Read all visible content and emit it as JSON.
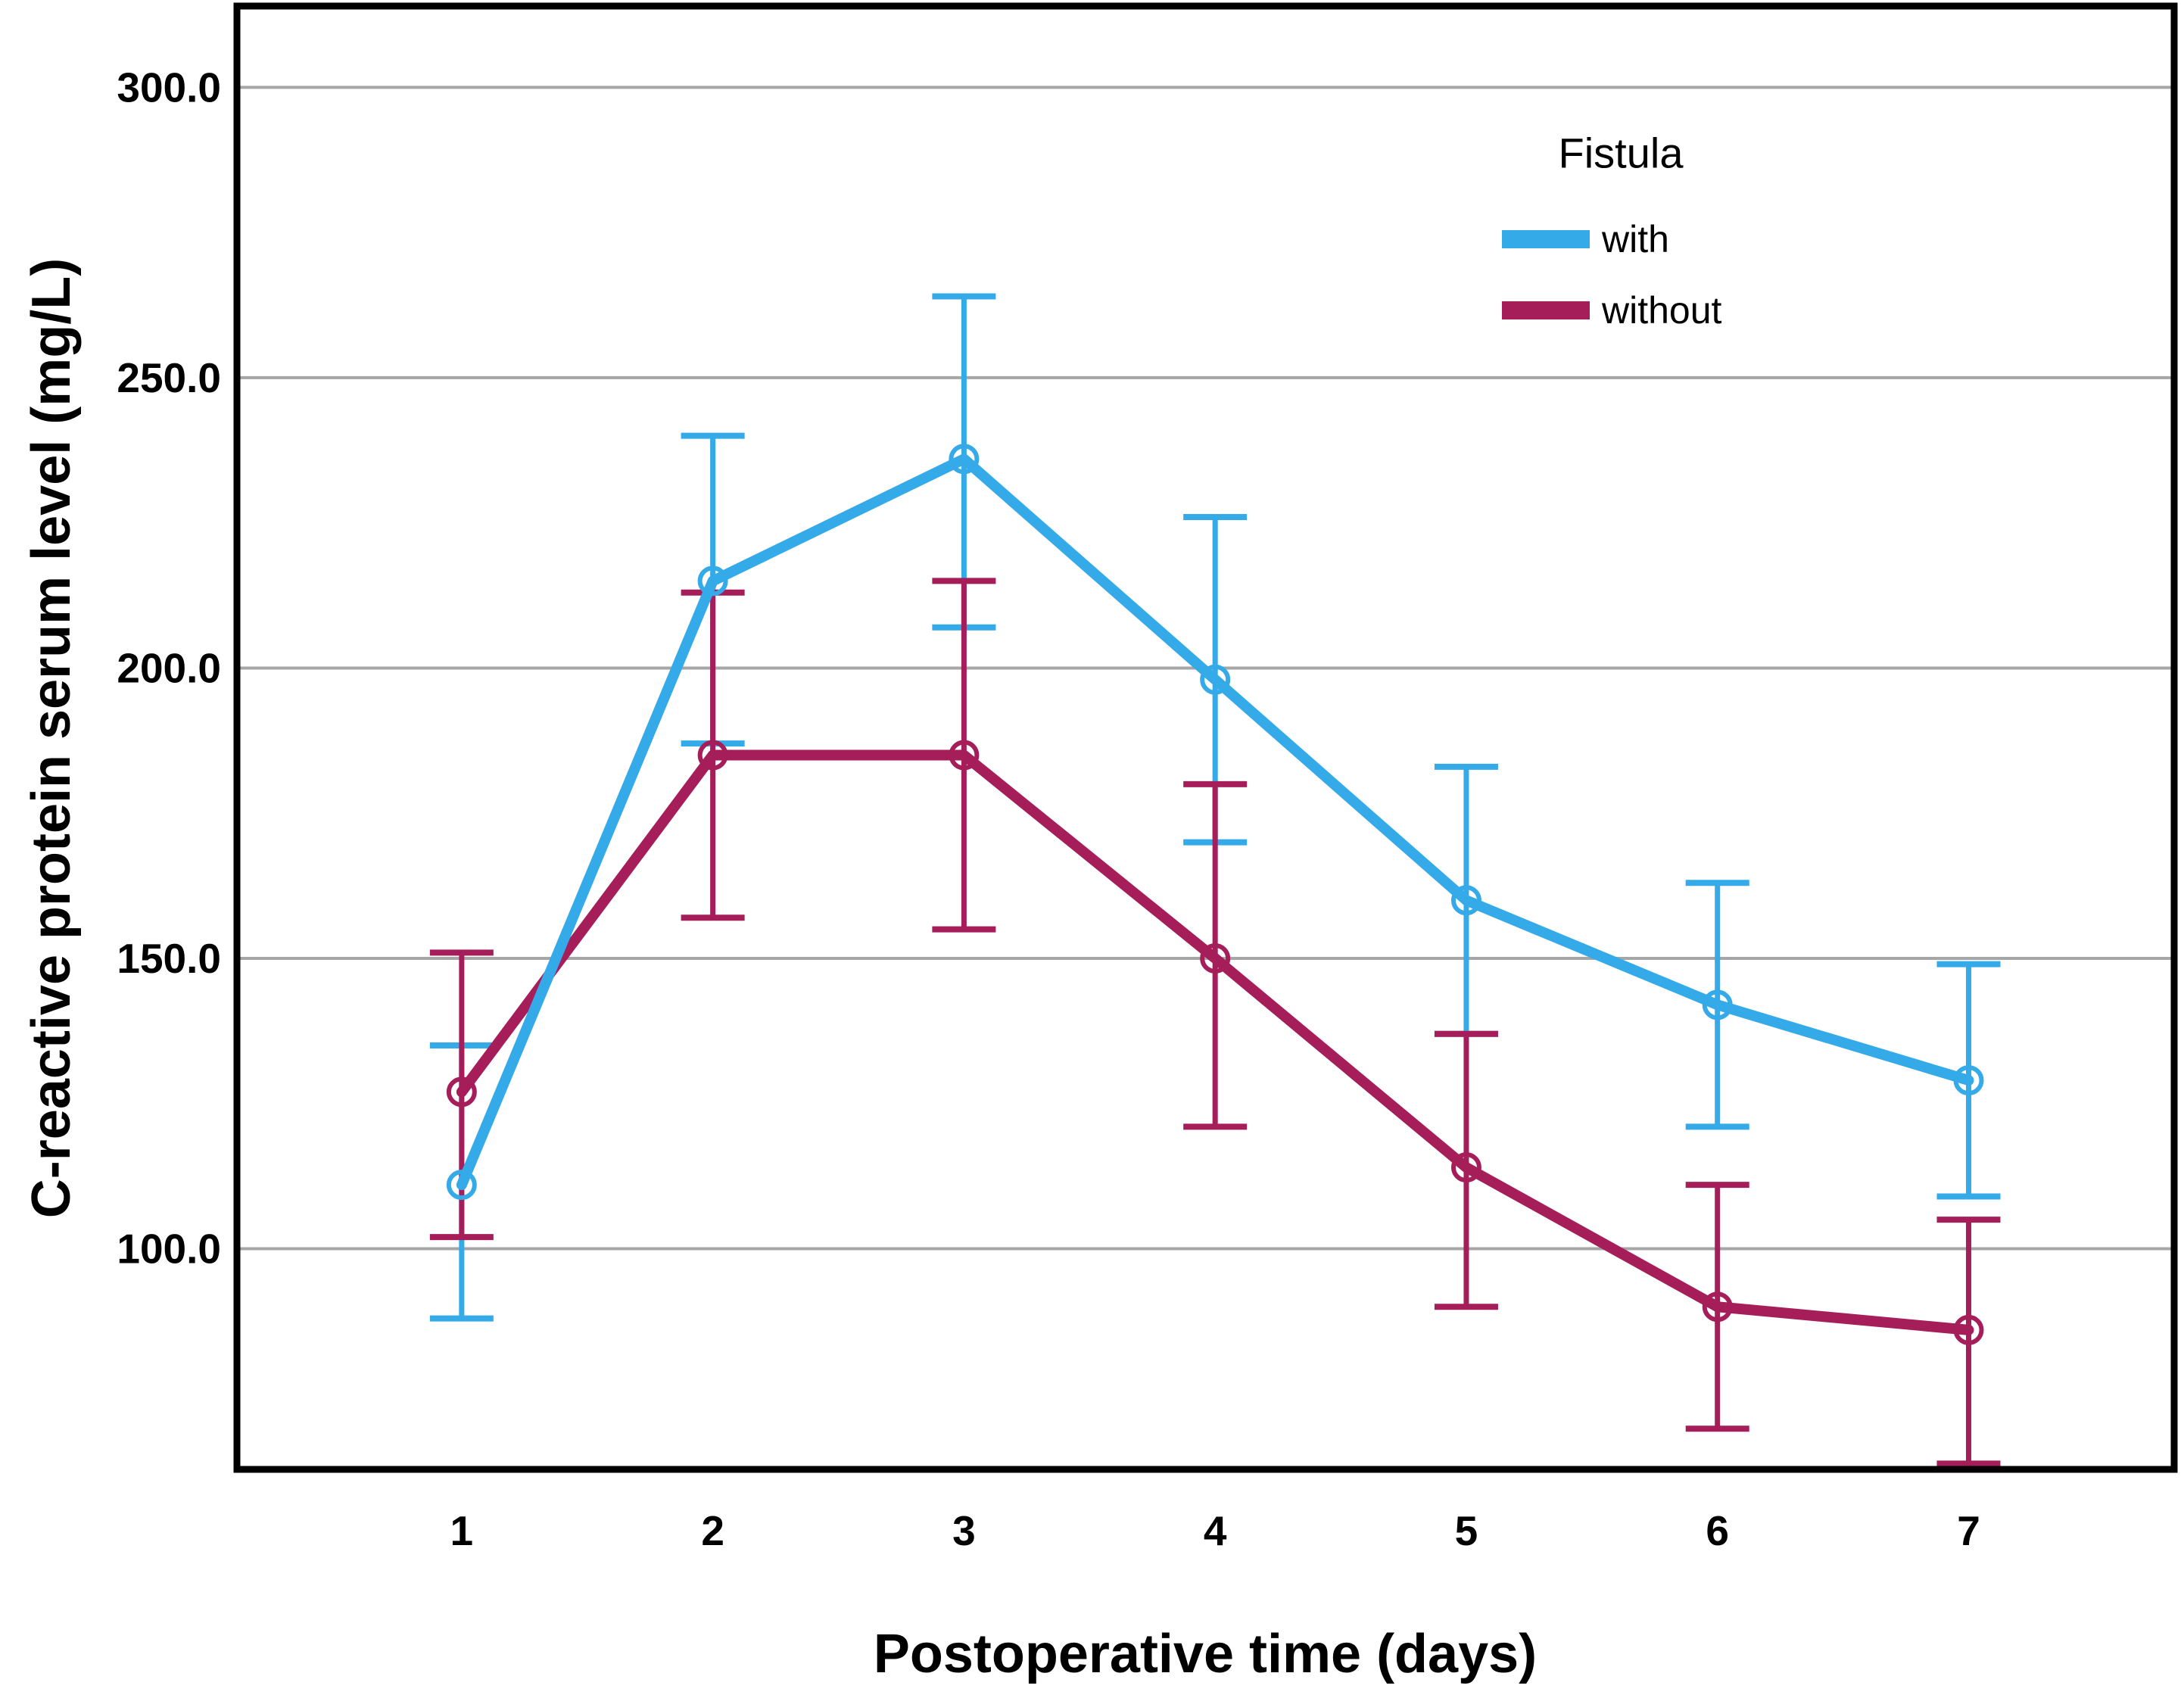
{
  "figure": {
    "background": "#FFFFFF",
    "plot_border_color": "#000000",
    "gridline_color": "#A6A6A6"
  },
  "chart_data": {
    "type": "line",
    "title": "",
    "xlabel": "Postoperative time (days)",
    "ylabel": "C-reactive protein serum level (mg/L)",
    "categories": [
      "1",
      "2",
      "3",
      "4",
      "5",
      "6",
      "7"
    ],
    "y_ticks": [
      100,
      150,
      200,
      250,
      300
    ],
    "y_tick_labels": [
      "100.0",
      "150.0",
      "200.0",
      "250.0",
      "300.0"
    ],
    "ylim": [
      62,
      314
    ],
    "grid": "horizontal-only",
    "error_bars": "95% CI, capped",
    "marker": "open-circle",
    "legend": {
      "title": "Fistula",
      "position": "top-right-inside",
      "entries": [
        {
          "label": "with",
          "color": "#35AAE9"
        },
        {
          "label": "without",
          "color": "#A51E5A"
        }
      ]
    },
    "series": [
      {
        "name": "with",
        "color": "#35AAE9",
        "values": [
          111,
          215,
          236,
          198,
          160,
          142,
          129
        ],
        "ci_lower": [
          88,
          187,
          207,
          170,
          137,
          121,
          109
        ],
        "ci_upper": [
          135,
          240,
          264,
          226,
          183,
          163,
          149
        ]
      },
      {
        "name": "without",
        "color": "#A51E5A",
        "values": [
          127,
          185,
          185,
          150,
          114,
          90,
          86
        ],
        "ci_lower": [
          102,
          157,
          155,
          121,
          90,
          69,
          63
        ],
        "ci_upper": [
          151,
          213,
          215,
          180,
          137,
          111,
          105
        ]
      }
    ]
  }
}
